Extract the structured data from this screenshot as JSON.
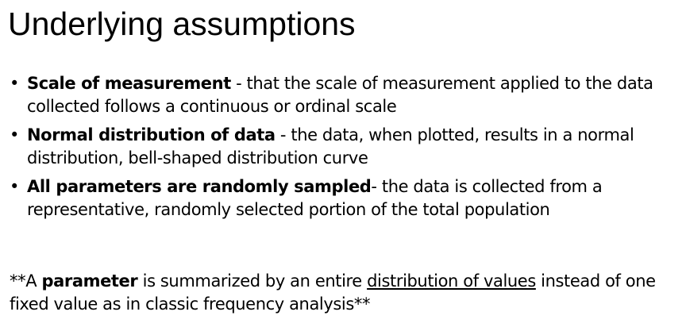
{
  "slide": {
    "title": "Underlying assumptions",
    "bullet_marker": "•",
    "bullets": [
      {
        "term": "Scale of measurement",
        "text": " - that the scale of measurement applied to the data collected follows a continuous or ordinal scale"
      },
      {
        "term": "Normal distribution of data",
        "text": " - the data, when plotted, results in a normal distribution, bell-shaped distribution curve"
      },
      {
        "term": "All parameters are randomly sampled",
        "text": "- the data is collected from a representative, randomly selected portion of the total population"
      }
    ],
    "footnote": {
      "prefix": "**A ",
      "bold_term": "parameter",
      "middle": " is summarized by an entire ",
      "underlined": "distribution of values",
      "suffix": " instead of one fixed value as in classic frequency analysis**"
    }
  }
}
